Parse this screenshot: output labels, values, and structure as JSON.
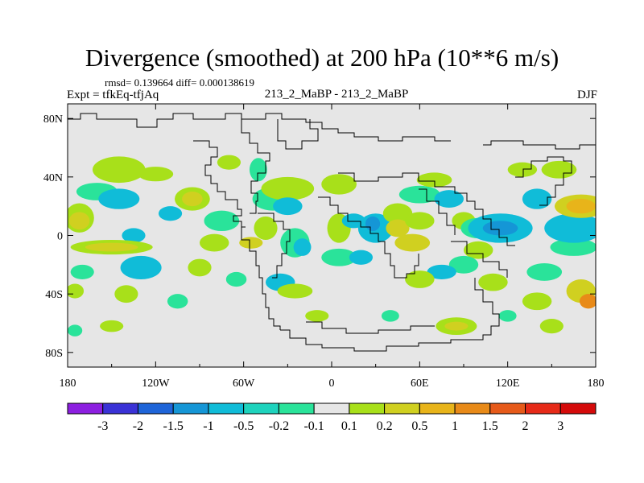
{
  "title": "Divergence (smoothed) at 200 hPa (10**6 m/s)",
  "rmsd_line": "rmsd= 0.139664 diff= 0.000138619",
  "expt_line": "Expt = tfkEq-tfjAq",
  "comparison_label": "213_2_MaBP - 213_2_MaBP",
  "season": "DJF",
  "background_color": "#e6e6e6",
  "axes": {
    "lat_labels": [
      "80N",
      "40N",
      "0",
      "40S",
      "80S"
    ],
    "lat_values": [
      80,
      40,
      0,
      -40,
      -80
    ],
    "lon_labels": [
      "180",
      "120W",
      "60W",
      "0",
      "60E",
      "120E",
      "180"
    ],
    "lon_values": [
      -180,
      -120,
      -60,
      0,
      60,
      120,
      180
    ],
    "lon_range": [
      -180,
      180
    ],
    "lat_range": [
      -90,
      90
    ]
  },
  "colorbar": {
    "labels": [
      "-3",
      "-2",
      "-1.5",
      "-1",
      "-0.5",
      "-0.2",
      "-0.1",
      "0.1",
      "0.2",
      "0.5",
      "1",
      "1.5",
      "2",
      "3"
    ],
    "colors": [
      "#8c1fe0",
      "#3a32d6",
      "#1e64d8",
      "#1596d6",
      "#10bcd8",
      "#1ed3bd",
      "#2ae39a",
      "#e6e6e6",
      "#a8e01a",
      "#d0d020",
      "#e8b41a",
      "#e88a18",
      "#e65a1a",
      "#e62a18",
      "#d40a0a"
    ]
  },
  "blobs": [
    {
      "lon": -145,
      "lat": 45,
      "rx": 18,
      "ry": 9,
      "c": "#a8e01a"
    },
    {
      "lon": -120,
      "lat": 42,
      "rx": 12,
      "ry": 5,
      "c": "#a8e01a"
    },
    {
      "lon": -160,
      "lat": 30,
      "rx": 14,
      "ry": 6,
      "c": "#2ae39a"
    },
    {
      "lon": -145,
      "lat": 25,
      "rx": 14,
      "ry": 7,
      "c": "#10bcd8"
    },
    {
      "lon": -172,
      "lat": 12,
      "rx": 10,
      "ry": 10,
      "c": "#a8e01a"
    },
    {
      "lon": -172,
      "lat": 10,
      "rx": 7,
      "ry": 6,
      "c": "#d0d020"
    },
    {
      "lon": -135,
      "lat": 0,
      "rx": 8,
      "ry": 5,
      "c": "#10bcd8"
    },
    {
      "lon": -150,
      "lat": -8,
      "rx": 28,
      "ry": 5,
      "c": "#a8e01a"
    },
    {
      "lon": -150,
      "lat": -8,
      "rx": 18,
      "ry": 3,
      "c": "#d0d020"
    },
    {
      "lon": -130,
      "lat": -22,
      "rx": 14,
      "ry": 8,
      "c": "#10bcd8"
    },
    {
      "lon": -170,
      "lat": -25,
      "rx": 8,
      "ry": 5,
      "c": "#2ae39a"
    },
    {
      "lon": -175,
      "lat": -38,
      "rx": 6,
      "ry": 5,
      "c": "#a8e01a"
    },
    {
      "lon": -140,
      "lat": -40,
      "rx": 8,
      "ry": 6,
      "c": "#a8e01a"
    },
    {
      "lon": -105,
      "lat": -45,
      "rx": 7,
      "ry": 5,
      "c": "#2ae39a"
    },
    {
      "lon": -150,
      "lat": -62,
      "rx": 8,
      "ry": 4,
      "c": "#a8e01a"
    },
    {
      "lon": -175,
      "lat": -65,
      "rx": 5,
      "ry": 4,
      "c": "#2ae39a"
    },
    {
      "lon": -95,
      "lat": 25,
      "rx": 12,
      "ry": 8,
      "c": "#a8e01a"
    },
    {
      "lon": -95,
      "lat": 25,
      "rx": 7,
      "ry": 5,
      "c": "#d0d020"
    },
    {
      "lon": -110,
      "lat": 15,
      "rx": 8,
      "ry": 5,
      "c": "#10bcd8"
    },
    {
      "lon": -75,
      "lat": 10,
      "rx": 12,
      "ry": 7,
      "c": "#2ae39a"
    },
    {
      "lon": -80,
      "lat": -5,
      "rx": 10,
      "ry": 6,
      "c": "#a8e01a"
    },
    {
      "lon": -90,
      "lat": -22,
      "rx": 8,
      "ry": 6,
      "c": "#a8e01a"
    },
    {
      "lon": -65,
      "lat": -30,
      "rx": 7,
      "ry": 5,
      "c": "#2ae39a"
    },
    {
      "lon": -70,
      "lat": 50,
      "rx": 8,
      "ry": 5,
      "c": "#a8e01a"
    },
    {
      "lon": -50,
      "lat": 45,
      "rx": 6,
      "ry": 8,
      "c": "#2ae39a"
    },
    {
      "lon": -40,
      "lat": 25,
      "rx": 14,
      "ry": 8,
      "c": "#2ae39a"
    },
    {
      "lon": -30,
      "lat": 32,
      "rx": 18,
      "ry": 8,
      "c": "#a8e01a"
    },
    {
      "lon": -30,
      "lat": 20,
      "rx": 10,
      "ry": 6,
      "c": "#10bcd8"
    },
    {
      "lon": -45,
      "lat": 5,
      "rx": 8,
      "ry": 8,
      "c": "#a8e01a"
    },
    {
      "lon": -55,
      "lat": -5,
      "rx": 8,
      "ry": 4,
      "c": "#d0d020"
    },
    {
      "lon": -25,
      "lat": -5,
      "rx": 10,
      "ry": 10,
      "c": "#2ae39a"
    },
    {
      "lon": -20,
      "lat": -8,
      "rx": 6,
      "ry": 6,
      "c": "#10bcd8"
    },
    {
      "lon": -35,
      "lat": -32,
      "rx": 10,
      "ry": 6,
      "c": "#10bcd8"
    },
    {
      "lon": -25,
      "lat": -38,
      "rx": 12,
      "ry": 5,
      "c": "#a8e01a"
    },
    {
      "lon": -10,
      "lat": -55,
      "rx": 8,
      "ry": 4,
      "c": "#a8e01a"
    },
    {
      "lon": 5,
      "lat": 35,
      "rx": 12,
      "ry": 7,
      "c": "#a8e01a"
    },
    {
      "lon": 5,
      "lat": 5,
      "rx": 8,
      "ry": 10,
      "c": "#a8e01a"
    },
    {
      "lon": 15,
      "lat": 10,
      "rx": 8,
      "ry": 5,
      "c": "#10bcd8"
    },
    {
      "lon": 5,
      "lat": -15,
      "rx": 12,
      "ry": 6,
      "c": "#2ae39a"
    },
    {
      "lon": 20,
      "lat": -15,
      "rx": 8,
      "ry": 5,
      "c": "#10bcd8"
    },
    {
      "lon": 30,
      "lat": 5,
      "rx": 12,
      "ry": 10,
      "c": "#10bcd8"
    },
    {
      "lon": 28,
      "lat": 8,
      "rx": 5,
      "ry": 5,
      "c": "#1596d6"
    },
    {
      "lon": 45,
      "lat": 15,
      "rx": 10,
      "ry": 7,
      "c": "#a8e01a"
    },
    {
      "lon": 45,
      "lat": 5,
      "rx": 8,
      "ry": 6,
      "c": "#d0d020"
    },
    {
      "lon": 60,
      "lat": 10,
      "rx": 10,
      "ry": 6,
      "c": "#a8e01a"
    },
    {
      "lon": 55,
      "lat": -5,
      "rx": 12,
      "ry": 6,
      "c": "#d0d020"
    },
    {
      "lon": 60,
      "lat": 28,
      "rx": 14,
      "ry": 6,
      "c": "#2ae39a"
    },
    {
      "lon": 70,
      "lat": 38,
      "rx": 12,
      "ry": 5,
      "c": "#a8e01a"
    },
    {
      "lon": 80,
      "lat": 25,
      "rx": 10,
      "ry": 6,
      "c": "#10bcd8"
    },
    {
      "lon": 90,
      "lat": 10,
      "rx": 8,
      "ry": 6,
      "c": "#a8e01a"
    },
    {
      "lon": 100,
      "lat": 5,
      "rx": 12,
      "ry": 7,
      "c": "#2ae39a"
    },
    {
      "lon": 115,
      "lat": 5,
      "rx": 22,
      "ry": 10,
      "c": "#10bcd8"
    },
    {
      "lon": 115,
      "lat": 5,
      "rx": 12,
      "ry": 5,
      "c": "#1596d6"
    },
    {
      "lon": 100,
      "lat": -10,
      "rx": 10,
      "ry": 6,
      "c": "#a8e01a"
    },
    {
      "lon": 90,
      "lat": -20,
      "rx": 10,
      "ry": 6,
      "c": "#2ae39a"
    },
    {
      "lon": 75,
      "lat": -25,
      "rx": 10,
      "ry": 5,
      "c": "#10bcd8"
    },
    {
      "lon": 60,
      "lat": -30,
      "rx": 10,
      "ry": 6,
      "c": "#a8e01a"
    },
    {
      "lon": 110,
      "lat": -32,
      "rx": 10,
      "ry": 6,
      "c": "#a8e01a"
    },
    {
      "lon": 145,
      "lat": -25,
      "rx": 12,
      "ry": 6,
      "c": "#2ae39a"
    },
    {
      "lon": 165,
      "lat": -8,
      "rx": 16,
      "ry": 6,
      "c": "#2ae39a"
    },
    {
      "lon": 165,
      "lat": 5,
      "rx": 20,
      "ry": 10,
      "c": "#10bcd8"
    },
    {
      "lon": 170,
      "lat": 20,
      "rx": 18,
      "ry": 8,
      "c": "#d0d020"
    },
    {
      "lon": 170,
      "lat": 20,
      "rx": 10,
      "ry": 5,
      "c": "#e8b41a"
    },
    {
      "lon": 140,
      "lat": 25,
      "rx": 10,
      "ry": 7,
      "c": "#10bcd8"
    },
    {
      "lon": 155,
      "lat": 45,
      "rx": 12,
      "ry": 6,
      "c": "#a8e01a"
    },
    {
      "lon": 130,
      "lat": 45,
      "rx": 10,
      "ry": 5,
      "c": "#a8e01a"
    },
    {
      "lon": 140,
      "lat": -45,
      "rx": 10,
      "ry": 6,
      "c": "#a8e01a"
    },
    {
      "lon": 170,
      "lat": -38,
      "rx": 10,
      "ry": 8,
      "c": "#d0d020"
    },
    {
      "lon": 175,
      "lat": -45,
      "rx": 6,
      "ry": 5,
      "c": "#e88a18"
    },
    {
      "lon": 120,
      "lat": -55,
      "rx": 6,
      "ry": 4,
      "c": "#2ae39a"
    },
    {
      "lon": 85,
      "lat": -62,
      "rx": 14,
      "ry": 6,
      "c": "#a8e01a"
    },
    {
      "lon": 85,
      "lat": -62,
      "rx": 8,
      "ry": 3,
      "c": "#d0d020"
    },
    {
      "lon": 150,
      "lat": -62,
      "rx": 8,
      "ry": 5,
      "c": "#a8e01a"
    },
    {
      "lon": 40,
      "lat": -55,
      "rx": 6,
      "ry": 4,
      "c": "#2ae39a"
    }
  ]
}
